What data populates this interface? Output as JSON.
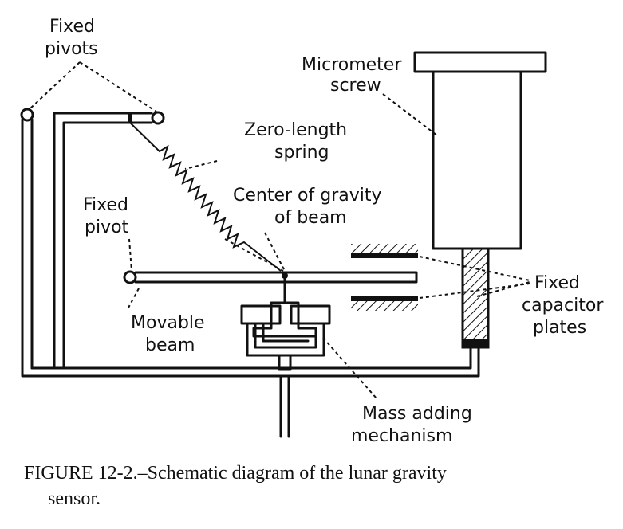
{
  "labels": {
    "fixed_pivots_1": "Fixed",
    "fixed_pivots_2": "pivots",
    "micrometer_1": "Micrometer",
    "micrometer_2": "screw",
    "zero_length_1": "Zero-length",
    "zero_length_2": "spring",
    "cog_1": "Center of gravity",
    "cog_2": "of beam",
    "fixed_pivot_1": "Fixed",
    "fixed_pivot_2": "pivot",
    "capacitor_1": "Fixed",
    "capacitor_2": "capacitor",
    "capacitor_3": "plates",
    "movable_1": "Movable",
    "movable_2": "beam",
    "mass_1": "Mass adding",
    "mass_2": "mechanism"
  },
  "caption": {
    "line1": "FIGURE 12-2.–Schematic diagram of the lunar gravity",
    "line2": "sensor."
  }
}
